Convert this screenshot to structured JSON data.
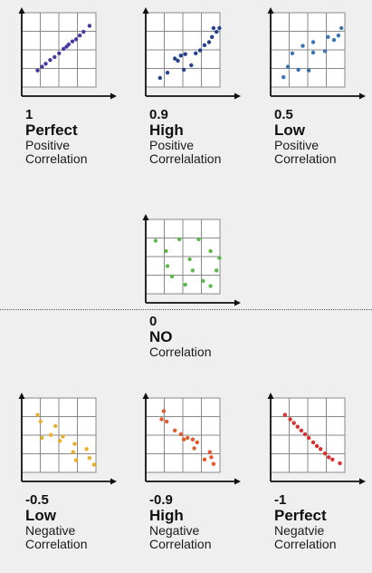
{
  "chart_data": [
    {
      "type": "scatter",
      "value_label": "1",
      "strength": "Perfect",
      "line3": "Positive",
      "line4": "Correlation",
      "color": "#4a3aa0",
      "points": [
        [
          0.7,
          0.75
        ],
        [
          1.0,
          1.0
        ],
        [
          1.25,
          1.2
        ],
        [
          1.55,
          1.45
        ],
        [
          1.85,
          1.65
        ],
        [
          2.15,
          1.9
        ],
        [
          2.45,
          2.2
        ],
        [
          2.65,
          2.35
        ],
        [
          2.8,
          2.5
        ],
        [
          3.05,
          2.7
        ],
        [
          3.3,
          2.85
        ],
        [
          3.55,
          3.1
        ],
        [
          3.8,
          3.35
        ],
        [
          4.2,
          3.75
        ]
      ]
    },
    {
      "type": "scatter",
      "value_label": "0.9",
      "strength": "High",
      "line3": "Positive",
      "line4": "Correlalation",
      "color": "#26428c",
      "points": [
        [
          0.6,
          0.25
        ],
        [
          1.1,
          0.6
        ],
        [
          1.6,
          1.55
        ],
        [
          1.8,
          1.4
        ],
        [
          2.0,
          1.75
        ],
        [
          2.2,
          0.8
        ],
        [
          2.3,
          1.85
        ],
        [
          2.7,
          1.1
        ],
        [
          3.0,
          1.9
        ],
        [
          3.3,
          2.1
        ],
        [
          3.6,
          2.45
        ],
        [
          3.9,
          2.65
        ],
        [
          4.1,
          3.0
        ],
        [
          4.2,
          3.6
        ],
        [
          4.4,
          3.35
        ],
        [
          4.6,
          3.6
        ]
      ]
    },
    {
      "type": "scatter",
      "value_label": "0.5",
      "strength": "Low",
      "line3": "Positive",
      "line4": "Correlation",
      "color": "#3a74b4",
      "points": [
        [
          0.5,
          0.3
        ],
        [
          0.8,
          1.0
        ],
        [
          1.1,
          1.9
        ],
        [
          1.5,
          0.8
        ],
        [
          1.8,
          2.4
        ],
        [
          2.2,
          0.75
        ],
        [
          2.5,
          1.95
        ],
        [
          2.5,
          2.65
        ],
        [
          3.3,
          2.05
        ],
        [
          3.5,
          3.0
        ],
        [
          3.9,
          2.8
        ],
        [
          4.2,
          3.1
        ],
        [
          4.4,
          3.6
        ]
      ]
    },
    {
      "type": "scatter",
      "value_label": "0",
      "strength": "NO",
      "line3": "Correlation",
      "line4": "",
      "color": "#5cb84a",
      "points": [
        [
          0.3,
          3.2
        ],
        [
          1.0,
          2.5
        ],
        [
          1.1,
          1.5
        ],
        [
          1.4,
          0.8
        ],
        [
          1.9,
          3.3
        ],
        [
          2.3,
          0.25
        ],
        [
          2.6,
          1.95
        ],
        [
          2.8,
          1.2
        ],
        [
          3.2,
          3.3
        ],
        [
          3.5,
          0.5
        ],
        [
          4.0,
          0.15
        ],
        [
          4.0,
          2.5
        ],
        [
          4.4,
          1.2
        ],
        [
          4.6,
          2.05
        ]
      ]
    },
    {
      "type": "scatter",
      "value_label": "-0.5",
      "strength": "Low",
      "line3": "Negative",
      "line4": "Correlation",
      "color": "#e8b02a",
      "points": [
        [
          0.7,
          3.5
        ],
        [
          0.9,
          3.05
        ],
        [
          1.0,
          1.95
        ],
        [
          1.6,
          2.15
        ],
        [
          1.9,
          2.75
        ],
        [
          2.2,
          1.75
        ],
        [
          2.4,
          2.05
        ],
        [
          3.1,
          1.0
        ],
        [
          3.2,
          1.55
        ],
        [
          3.3,
          0.45
        ],
        [
          4.0,
          1.2
        ],
        [
          4.2,
          0.6
        ],
        [
          4.5,
          0.15
        ]
      ]
    },
    {
      "type": "scatter",
      "value_label": "-0.9",
      "strength": "High",
      "line3": "Negative",
      "line4": "Correlation",
      "color": "#e35a2a",
      "points": [
        [
          0.7,
          3.2
        ],
        [
          0.85,
          3.75
        ],
        [
          1.05,
          3.05
        ],
        [
          1.6,
          2.45
        ],
        [
          2.0,
          2.2
        ],
        [
          2.2,
          1.85
        ],
        [
          2.45,
          1.95
        ],
        [
          2.8,
          1.85
        ],
        [
          2.9,
          1.25
        ],
        [
          3.1,
          1.65
        ],
        [
          3.6,
          0.5
        ],
        [
          3.95,
          1.0
        ],
        [
          4.05,
          0.65
        ],
        [
          4.2,
          0.2
        ]
      ]
    },
    {
      "type": "scatter",
      "value_label": "-1",
      "strength": "Perfect",
      "line3": "Negatvie",
      "line4": "Correlation",
      "color": "#d8302e",
      "points": [
        [
          0.6,
          3.5
        ],
        [
          0.95,
          3.2
        ],
        [
          1.2,
          2.95
        ],
        [
          1.45,
          2.7
        ],
        [
          1.7,
          2.45
        ],
        [
          1.95,
          2.2
        ],
        [
          2.2,
          1.95
        ],
        [
          2.5,
          1.65
        ],
        [
          2.75,
          1.4
        ],
        [
          3.0,
          1.2
        ],
        [
          3.3,
          0.9
        ],
        [
          3.55,
          0.65
        ],
        [
          3.8,
          0.5
        ],
        [
          4.3,
          0.25
        ]
      ]
    }
  ]
}
